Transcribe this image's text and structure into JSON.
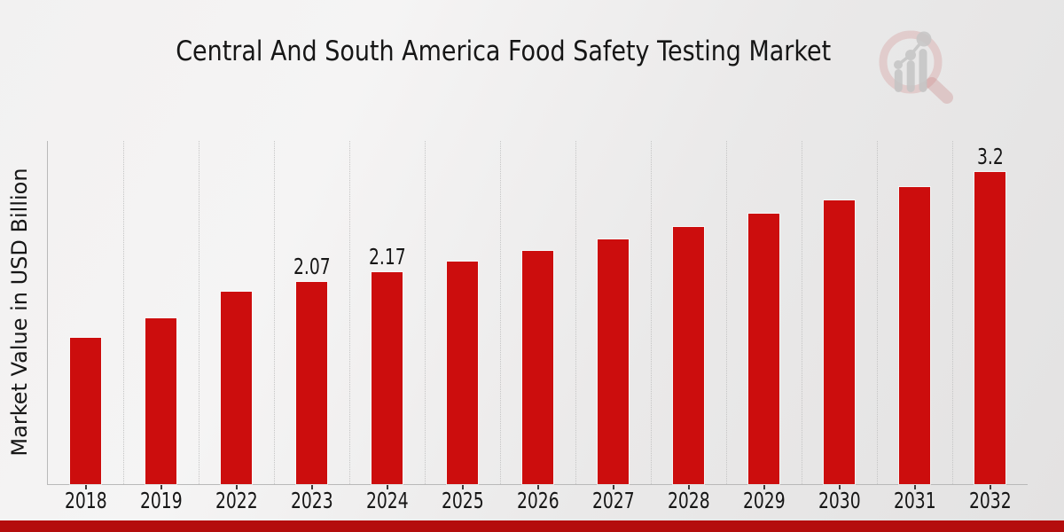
{
  "title": "Central And South America Food Safety Testing Market",
  "branding": {
    "icon": "magnifier-bar-chart-watermark"
  },
  "colors": {
    "bar": "#cc0d0d",
    "footer_strip": "#b40d0d",
    "gridline": "#c5c5c5",
    "axis_line": "#b9b9b9",
    "text": "#161616",
    "logo_ring_pink": "#cf8a8a",
    "logo_gray": "#c4c4c4"
  },
  "chart_data": {
    "type": "bar",
    "title": "Central And South America Food Safety Testing Market",
    "xlabel": "",
    "ylabel": "Market Value in USD Billion",
    "categories": [
      "2018",
      "2019",
      "2022",
      "2023",
      "2024",
      "2025",
      "2026",
      "2027",
      "2028",
      "2029",
      "2030",
      "2031",
      "2032"
    ],
    "values": [
      1.5,
      1.7,
      1.97,
      2.07,
      2.17,
      2.28,
      2.39,
      2.51,
      2.64,
      2.77,
      2.91,
      3.05,
      3.2
    ],
    "bar_labels": {
      "2023": "2.07",
      "2024": "2.17",
      "2032": "3.2"
    },
    "ylim": [
      0,
      3.52
    ],
    "grid": "vertical-dotted-between-categories",
    "legend": "none",
    "y_tick_labels": "none"
  }
}
